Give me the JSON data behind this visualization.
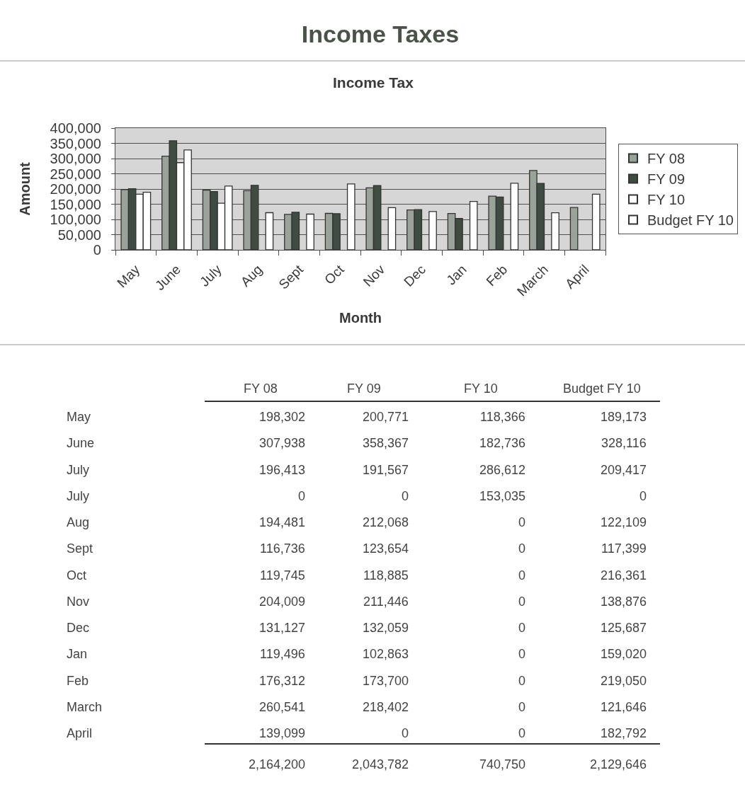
{
  "chart_data": [
    {
      "type": "bar",
      "title": "Income Taxes",
      "subtitle": "Income Tax",
      "xlabel": "Month",
      "ylabel": "Amount",
      "categories": [
        "May",
        "June",
        "July",
        "Aug",
        "Sept",
        "Oct",
        "Nov",
        "Dec",
        "Jan",
        "Feb",
        "March",
        "April"
      ],
      "series": [
        {
          "name": "FY 08",
          "color": "#9aa39a",
          "values": [
            198302,
            307938,
            196413,
            194481,
            116736,
            119745,
            204009,
            131127,
            119496,
            176312,
            260541,
            139099
          ]
        },
        {
          "name": "FY 09",
          "color": "#3e4c42",
          "values": [
            200771,
            358367,
            191567,
            212068,
            123654,
            118885,
            211446,
            132059,
            102863,
            173700,
            218402,
            0
          ]
        },
        {
          "name": "FY 10",
          "color": "#ffffff",
          "values": [
            182736,
            286612,
            153035,
            0,
            0,
            0,
            0,
            0,
            0,
            0,
            0,
            0
          ]
        },
        {
          "name": "Budget FY 10",
          "color": "#ffffff",
          "values": [
            189173,
            328116,
            209417,
            122109,
            117399,
            216361,
            138876,
            125687,
            159020,
            219050,
            121646,
            182792
          ]
        }
      ],
      "ylim": [
        0,
        400000
      ],
      "yticks": [
        0,
        {
          "value": 50000,
          "label": "50,000"
        },
        {
          "value": 100000,
          "label": "100,000"
        },
        {
          "value": 150000,
          "label": "150,000"
        },
        {
          "value": 200000,
          "label": "200,000"
        },
        {
          "value": 250000,
          "label": "250,000"
        },
        {
          "value": 300000,
          "label": "300,000"
        },
        {
          "value": 350000,
          "label": "350,000"
        },
        {
          "value": 400000,
          "label": "400,000"
        }
      ],
      "grid": "y",
      "legend": "right"
    },
    {
      "type": "other",
      "categories": [
        "May",
        "June",
        "July",
        "July",
        "Aug",
        "Sept",
        "Oct",
        "Nov",
        "Dec",
        "Jan",
        "Feb",
        "March",
        "April"
      ],
      "series": [
        {
          "name": "FY 08",
          "values": [
            198302,
            307938,
            196413,
            0,
            194481,
            116736,
            119745,
            204009,
            131127,
            119496,
            176312,
            260541,
            139099
          ],
          "value_labels": [
            "198,302",
            "307,938",
            "196,413",
            "0",
            "194,481",
            "116,736",
            "119,745",
            "204,009",
            "131,127",
            "119,496",
            "176,312",
            "260,541",
            "139,099"
          ]
        },
        {
          "name": "FY 09",
          "values": [
            200771,
            358367,
            191567,
            0,
            212068,
            123654,
            118885,
            211446,
            132059,
            102863,
            173700,
            218402,
            0
          ],
          "value_labels": [
            "200,771",
            "358,367",
            "191,567",
            "0",
            "212,068",
            "123,654",
            "118,885",
            "211,446",
            "132,059",
            "102,863",
            "173,700",
            "218,402",
            "0"
          ]
        },
        {
          "name": "FY 10",
          "values": [
            118366,
            182736,
            286612,
            153035,
            0,
            0,
            0,
            0,
            0,
            0,
            0,
            0,
            0
          ],
          "value_labels": [
            "118,366",
            "182,736",
            "286,612",
            "153,035",
            "0",
            "0",
            "0",
            "0",
            "0",
            "0",
            "0",
            "0",
            "0"
          ]
        },
        {
          "name": "Budget FY 10",
          "values": [
            189173,
            328116,
            209417,
            0,
            122109,
            117399,
            216361,
            138876,
            125687,
            159020,
            219050,
            121646,
            182792
          ],
          "value_labels": [
            "189,173",
            "328,116",
            "209,417",
            "0",
            "122,109",
            "117,399",
            "216,361",
            "138,876",
            "125,687",
            "159,020",
            "219,050",
            "121,646",
            "182,792"
          ]
        }
      ],
      "totals": [
        "2,164,200",
        "2,043,782",
        "740,750",
        "2,129,646"
      ]
    }
  ]
}
